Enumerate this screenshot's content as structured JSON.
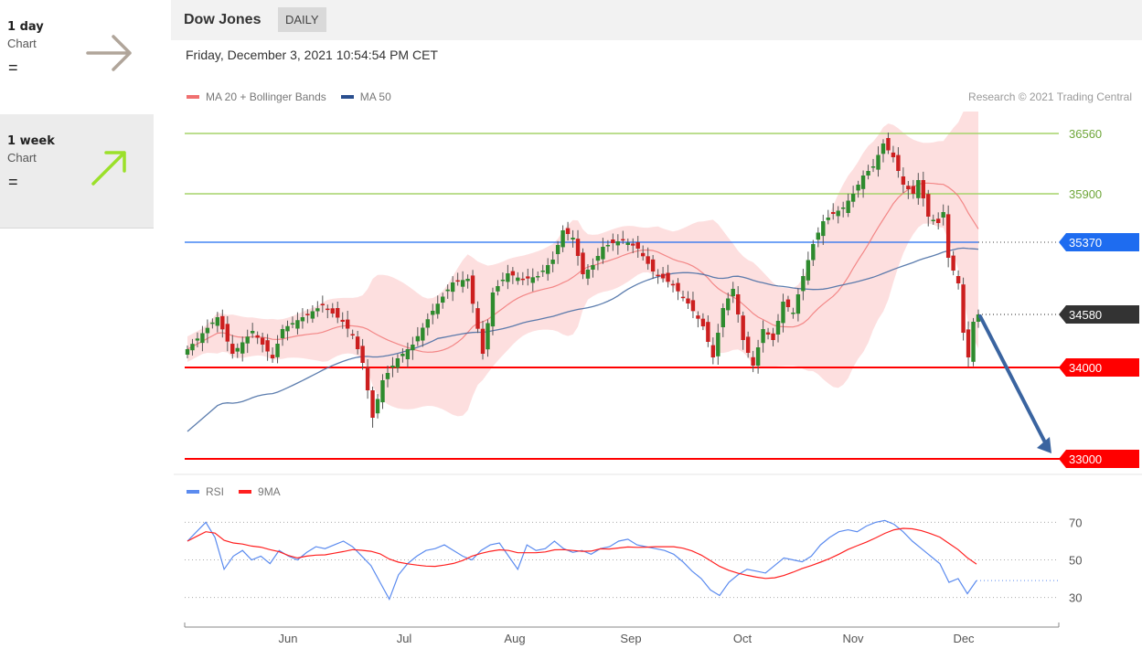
{
  "sidebar": {
    "items": [
      {
        "period": "1 day",
        "label": "Chart",
        "sign": "=",
        "arrow": "right-arrow-icon",
        "color": "#b0a59a"
      },
      {
        "period": "1 week",
        "label": "Chart",
        "sign": "=",
        "arrow": "up-right-arrow-icon",
        "color": "#9be02a"
      }
    ]
  },
  "header": {
    "title": "Dow Jones",
    "badge": "DAILY"
  },
  "timestamp": "Friday, December 3, 2021 10:54:54 PM CET",
  "legend": {
    "ma20": "MA 20 + Bollinger Bands",
    "ma50": "MA 50",
    "rsi": "RSI",
    "ma9": "9MA"
  },
  "copyright": "Research © 2021 Trading Central",
  "colors": {
    "bullish": "#2e8b2e",
    "bearish": "#cc1f1f",
    "ma20": "#f07070",
    "ma50": "#4a6fa5",
    "band": "#fddcdc",
    "support": "#ff0000",
    "resistance": "#a6d46a",
    "current": "#333333",
    "ma50_label": "#1e6cf0",
    "forecast_arrow": "#3a64a0",
    "rsi": "#5b8bef",
    "rsi_ma": "#ff2020"
  },
  "chart_data": [
    {
      "type": "candlestick",
      "title": "",
      "x_ticks": [
        "Jun",
        "Jul",
        "Aug",
        "Sep",
        "Oct",
        "Nov",
        "Dec"
      ],
      "ylim": [
        32900,
        36800
      ],
      "levels": [
        {
          "value": 36560,
          "label": "36560",
          "kind": "resistance"
        },
        {
          "value": 35900,
          "label": "35900",
          "kind": "resistance"
        },
        {
          "value": 35370,
          "label": "35370",
          "kind": "ma50"
        },
        {
          "value": 34580,
          "label": "34580",
          "kind": "current"
        },
        {
          "value": 34000,
          "label": "34000",
          "kind": "support"
        },
        {
          "value": 33000,
          "label": "33000",
          "kind": "support"
        }
      ],
      "anchors": [
        {
          "x": 0,
          "p": 34200
        },
        {
          "x": 6,
          "p": 34550
        },
        {
          "x": 9,
          "p": 34150
        },
        {
          "x": 13,
          "p": 34400
        },
        {
          "x": 17,
          "p": 34100
        },
        {
          "x": 19,
          "p": 34420
        },
        {
          "x": 23,
          "p": 34550
        },
        {
          "x": 27,
          "p": 34680
        },
        {
          "x": 31,
          "p": 34500
        },
        {
          "x": 33,
          "p": 34350
        },
        {
          "x": 35,
          "p": 34050
        },
        {
          "x": 37,
          "p": 33450
        },
        {
          "x": 39,
          "p": 33860
        },
        {
          "x": 42,
          "p": 34100
        },
        {
          "x": 45,
          "p": 34250
        },
        {
          "x": 49,
          "p": 34620
        },
        {
          "x": 53,
          "p": 34930
        },
        {
          "x": 56,
          "p": 34970
        },
        {
          "x": 59,
          "p": 34150
        },
        {
          "x": 61,
          "p": 34820
        },
        {
          "x": 64,
          "p": 35030
        },
        {
          "x": 67,
          "p": 34960
        },
        {
          "x": 70,
          "p": 35000
        },
        {
          "x": 73,
          "p": 35180
        },
        {
          "x": 75,
          "p": 35500
        },
        {
          "x": 77,
          "p": 35420
        },
        {
          "x": 79,
          "p": 35020
        },
        {
          "x": 81,
          "p": 35120
        },
        {
          "x": 83,
          "p": 35320
        },
        {
          "x": 87,
          "p": 35400
        },
        {
          "x": 90,
          "p": 35300
        },
        {
          "x": 93,
          "p": 35050
        },
        {
          "x": 97,
          "p": 34900
        },
        {
          "x": 100,
          "p": 34700
        },
        {
          "x": 103,
          "p": 34450
        },
        {
          "x": 105,
          "p": 34110
        },
        {
          "x": 107,
          "p": 34650
        },
        {
          "x": 109,
          "p": 34860
        },
        {
          "x": 111,
          "p": 34300
        },
        {
          "x": 113,
          "p": 34020
        },
        {
          "x": 115,
          "p": 34420
        },
        {
          "x": 117,
          "p": 34300
        },
        {
          "x": 119,
          "p": 34720
        },
        {
          "x": 121,
          "p": 34600
        },
        {
          "x": 123,
          "p": 35000
        },
        {
          "x": 125,
          "p": 35350
        },
        {
          "x": 127,
          "p": 35600
        },
        {
          "x": 129,
          "p": 35680
        },
        {
          "x": 131,
          "p": 35750
        },
        {
          "x": 133,
          "p": 35900
        },
        {
          "x": 135,
          "p": 36100
        },
        {
          "x": 137,
          "p": 36200
        },
        {
          "x": 139,
          "p": 36450
        },
        {
          "x": 141,
          "p": 36300
        },
        {
          "x": 143,
          "p": 36000
        },
        {
          "x": 145,
          "p": 35900
        },
        {
          "x": 146,
          "p": 36050
        },
        {
          "x": 148,
          "p": 35650
        },
        {
          "x": 150,
          "p": 35580
        },
        {
          "x": 151,
          "p": 35700
        },
        {
          "x": 152,
          "p": 35200
        },
        {
          "x": 154,
          "p": 34920
        },
        {
          "x": 155,
          "p": 34380
        },
        {
          "x": 156,
          "p": 34110
        },
        {
          "x": 157,
          "p": 34500
        },
        {
          "x": 158,
          "p": 34580
        }
      ],
      "rsi": {
        "ylim": [
          22,
          78
        ],
        "ticks": [
          70,
          50,
          30
        ],
        "current": 39,
        "values": [
          60,
          65,
          70,
          62,
          45,
          52,
          55,
          50,
          52,
          48,
          55,
          52,
          50,
          54,
          57,
          56,
          58,
          60,
          57,
          52,
          47,
          38,
          29,
          42,
          48,
          52,
          55,
          56,
          58,
          55,
          52,
          50,
          55,
          58,
          59,
          52,
          45,
          58,
          55,
          56,
          60,
          56,
          54,
          55,
          53,
          56,
          57,
          60,
          61,
          58,
          57,
          56,
          55,
          53,
          49,
          44,
          40,
          34,
          31,
          38,
          42,
          45,
          44,
          43,
          47,
          51,
          50,
          49,
          52,
          58,
          62,
          65,
          66,
          65,
          68,
          70,
          71,
          69,
          65,
          60,
          56,
          52,
          48,
          38,
          40,
          32,
          39
        ]
      }
    }
  ]
}
